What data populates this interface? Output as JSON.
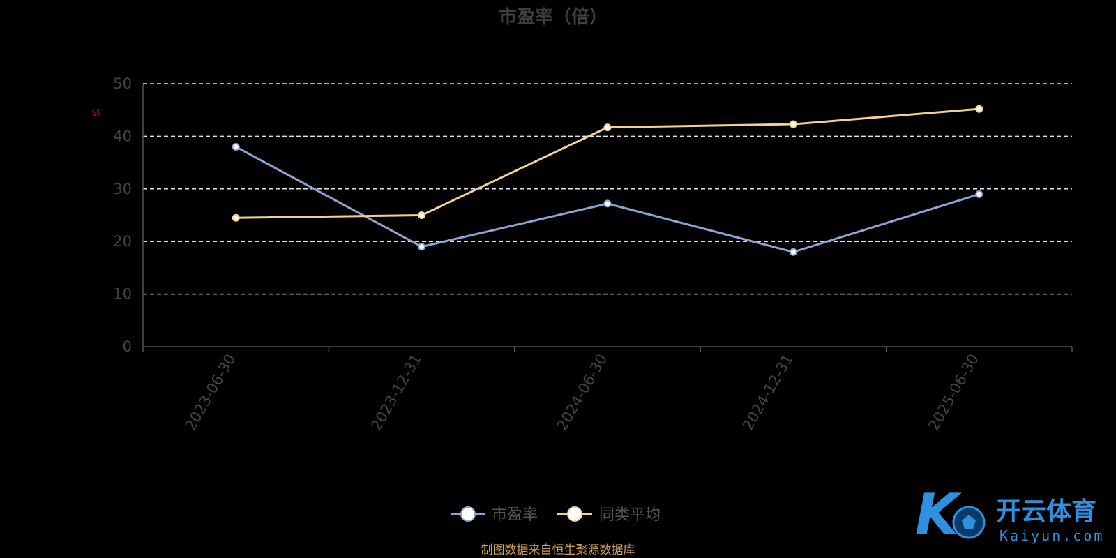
{
  "chart_data": {
    "type": "line",
    "title": "市盈率（倍）",
    "y_unit": "倍",
    "categories": [
      "2023-06-30",
      "2023-12-31",
      "2024-06-30",
      "2024-12-31",
      "2025-06-30"
    ],
    "yticks": [
      "0",
      "10",
      "20",
      "30",
      "40",
      "50"
    ],
    "ylim": [
      0,
      50
    ],
    "grid": true,
    "legend_position": "bottom-center",
    "series": [
      {
        "name": "市盈率",
        "values": [
          38.0,
          19.0,
          27.2,
          18.0,
          29.0
        ],
        "color": "#8aa6d6"
      },
      {
        "name": "同类平均",
        "values": [
          24.5,
          25.0,
          41.7,
          42.3,
          45.2
        ],
        "color": "#f5d08e"
      }
    ]
  },
  "source_note": "制图数据来自恒生聚源数据库",
  "watermark": {
    "logo_text": "K",
    "cn_text": "开云体育",
    "en_text": "Kaiyun.com",
    "color": "#2f8fe0"
  }
}
